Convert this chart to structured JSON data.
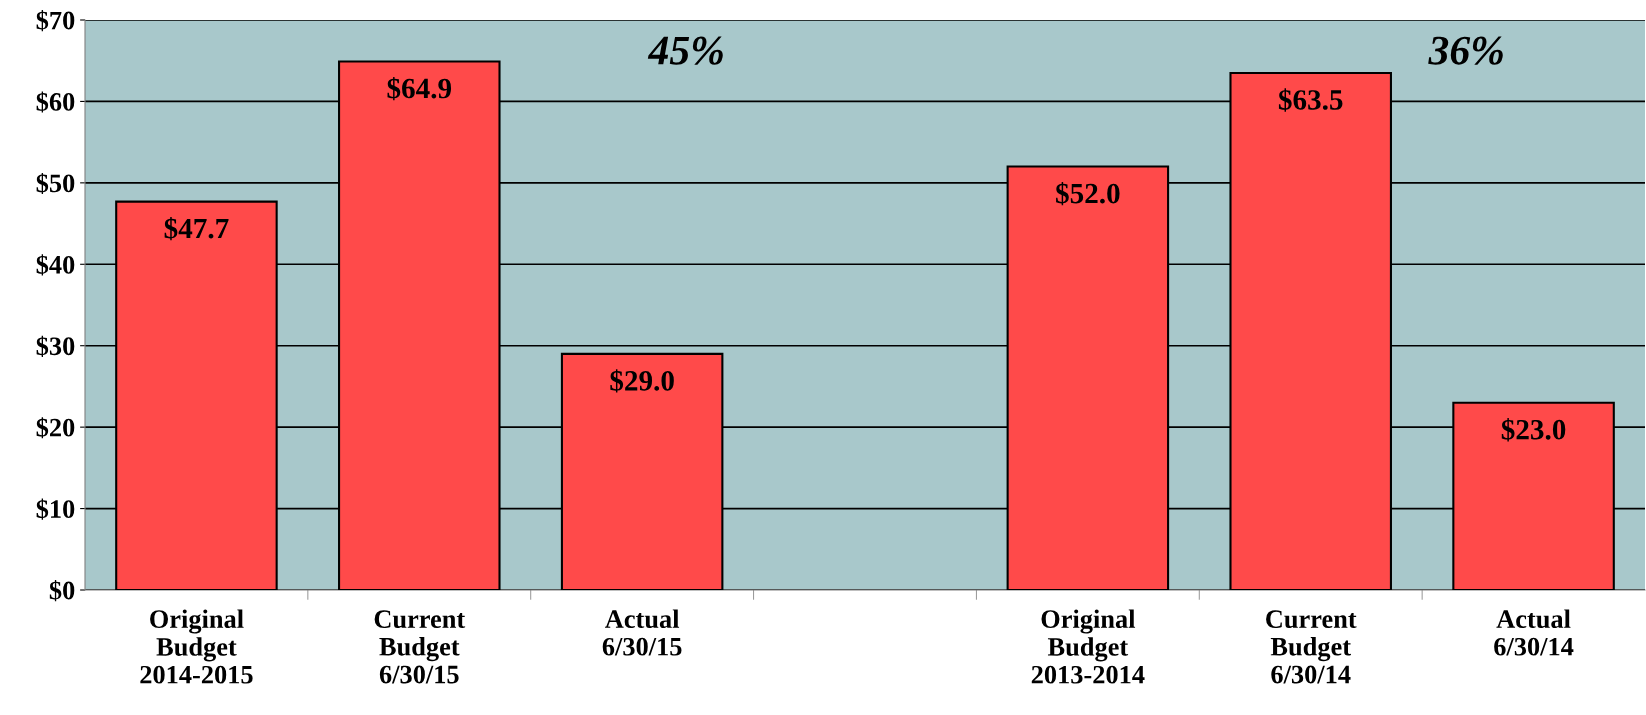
{
  "chart_data": {
    "type": "bar",
    "categories": [
      "Original\nBudget\n2014-2015",
      "Current\nBudget\n6/30/15",
      "Actual\n6/30/15",
      null,
      "Original\nBudget\n2013-2014",
      "Current\nBudget\n6/30/14",
      "Actual\n6/30/14"
    ],
    "values": [
      47.7,
      64.9,
      29.0,
      null,
      52.0,
      63.5,
      23.0
    ],
    "value_labels": [
      "$47.7",
      "$64.9",
      "$29.0",
      null,
      "$52.0",
      "$63.5",
      "$23.0"
    ],
    "color": "#ff4a4a",
    "ylim": [
      0,
      70
    ],
    "yticks": [
      {
        "value": 0,
        "label": "$0"
      },
      {
        "value": 10,
        "label": "$10"
      },
      {
        "value": 20,
        "label": "$20"
      },
      {
        "value": 30,
        "label": "$30"
      },
      {
        "value": 40,
        "label": "$40"
      },
      {
        "value": 50,
        "label": "$50"
      },
      {
        "value": 60,
        "label": "$60"
      },
      {
        "value": 70,
        "label": "$70"
      }
    ],
    "grid": "y",
    "annotations": [
      "45%",
      "36%"
    ]
  }
}
